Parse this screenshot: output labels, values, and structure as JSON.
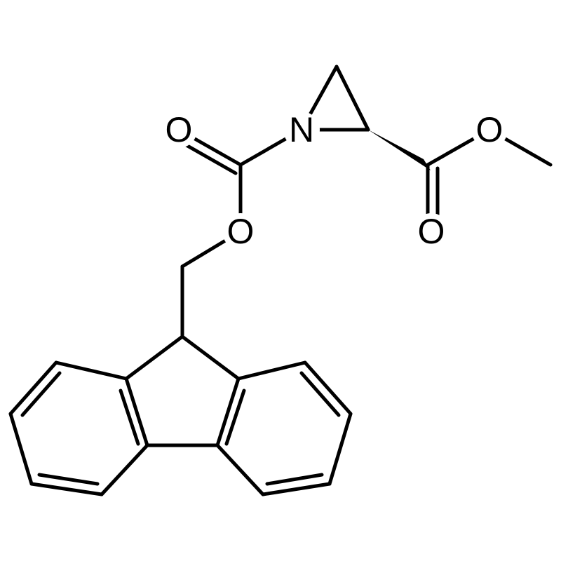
{
  "atoms": [
    {
      "label": "O"
    },
    {
      "label": "N"
    },
    {
      "label": "O"
    },
    {
      "label": "O"
    },
    {
      "label": "O"
    }
  ]
}
